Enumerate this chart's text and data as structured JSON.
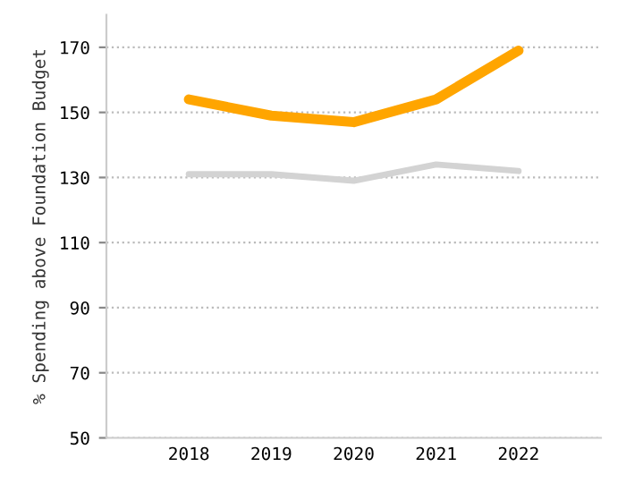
{
  "chart_data": {
    "type": "line",
    "ylabel": "% Spending above Foundation Budget",
    "categories": [
      "2018",
      "2019",
      "2020",
      "2021",
      "2022"
    ],
    "series": [
      {
        "color": "#ffa500",
        "values": [
          154,
          149,
          147,
          154,
          169
        ]
      },
      {
        "color": "#d3d3d3",
        "values": [
          131,
          131,
          129,
          134,
          132
        ]
      }
    ],
    "ylim": [
      50,
      180
    ],
    "yticks": [
      50,
      70,
      90,
      110,
      130,
      150,
      170
    ],
    "grid": "y",
    "marker": "none",
    "line_style": "solid"
  }
}
